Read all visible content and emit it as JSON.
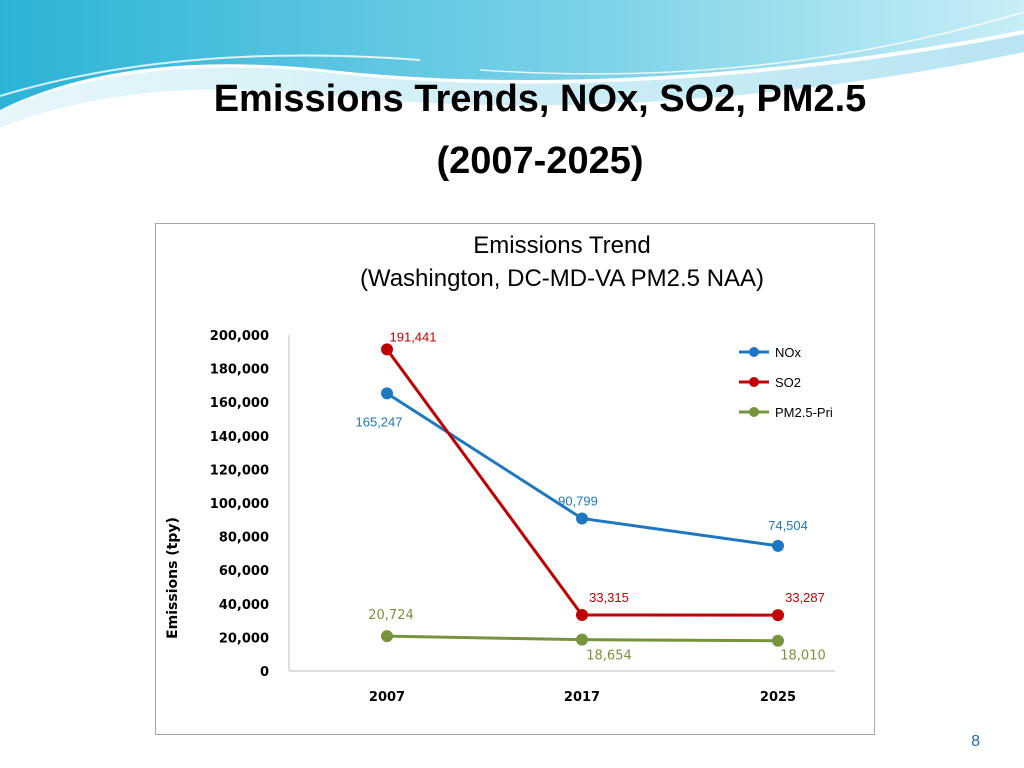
{
  "slide": {
    "title_line1": "Emissions Trends, NOx, SO2, PM2.5",
    "title_line2": "(2007-2025)",
    "page_number": "8"
  },
  "colors": {
    "NOx": "#1f77c0",
    "SO2": "#c00000",
    "PM2.5-Pri": "#77933c",
    "axis": "#bfbfbf",
    "frame": "#a6a6a6"
  },
  "chart_data": {
    "type": "line",
    "title": "Emissions Trend",
    "subtitle": "(Washington, DC-MD-VA PM2.5 NAA)",
    "xlabel": "",
    "ylabel": "Emissions (tpy)",
    "categories": [
      "2007",
      "2017",
      "2025"
    ],
    "ylim": [
      0,
      200000
    ],
    "yticks": [
      0,
      20000,
      40000,
      60000,
      80000,
      100000,
      120000,
      140000,
      160000,
      180000,
      200000
    ],
    "ytick_labels": [
      "0",
      "20,000",
      "40,000",
      "60,000",
      "80,000",
      "100,000",
      "120,000",
      "140,000",
      "160,000",
      "180,000",
      "200,000"
    ],
    "grid": false,
    "legend": "right",
    "series": [
      {
        "name": "NOx",
        "values": [
          165247,
          90799,
          74504
        ],
        "labels": [
          "165,247",
          "90,799",
          "74,504"
        ]
      },
      {
        "name": "SO2",
        "values": [
          191441,
          33315,
          33287
        ],
        "labels": [
          "191,441",
          "33,315",
          "33,287"
        ]
      },
      {
        "name": "PM2.5-Pri",
        "values": [
          20724,
          18654,
          18010
        ],
        "labels": [
          "20,724",
          "18,654",
          "18,010"
        ]
      }
    ]
  }
}
